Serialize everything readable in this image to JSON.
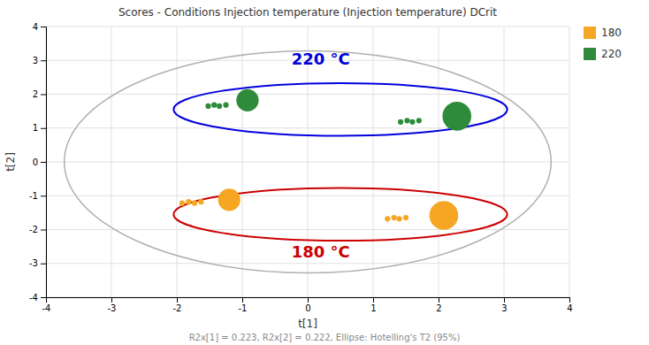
{
  "chart_data": {
    "type": "scatter",
    "title": "Scores - Conditions Injection temperature (Injection temperature) DCrit",
    "x_label": "t[1]",
    "y_label": "t[2]",
    "footnote": "R2x[1] = 0.223, R2x[2] = 0.222, Ellipse: Hotelling's T2 (95%)",
    "xlim": [
      -4,
      4
    ],
    "ylim": [
      -4,
      4
    ],
    "xticks": [
      -4,
      -3,
      -2,
      -1,
      0,
      1,
      2,
      3,
      4
    ],
    "yticks": [
      -4,
      -3,
      -2,
      -1,
      0,
      1,
      2,
      3,
      4
    ],
    "grid": true,
    "legend": "right",
    "series": [
      {
        "name": "180",
        "color": "#F5A623",
        "x": [
          -1.92,
          -1.82,
          -1.73,
          -1.63,
          -1.2,
          1.22,
          1.32,
          1.4,
          1.5,
          2.08
        ],
        "values": [
          -1.22,
          -1.18,
          -1.22,
          -1.18,
          -1.12,
          -1.68,
          -1.65,
          -1.68,
          -1.65,
          -1.58
        ],
        "sizes": [
          22,
          22,
          22,
          22,
          360,
          22,
          22,
          22,
          22,
          600
        ]
      },
      {
        "name": "220",
        "color": "#2E8B3A",
        "x": [
          -1.52,
          -1.43,
          -1.35,
          -1.25,
          -0.92,
          1.42,
          1.52,
          1.6,
          1.7,
          2.28
        ],
        "values": [
          1.65,
          1.68,
          1.65,
          1.68,
          1.82,
          1.18,
          1.22,
          1.18,
          1.22,
          1.35
        ],
        "sizes": [
          22,
          22,
          22,
          22,
          360,
          22,
          22,
          22,
          22,
          600
        ]
      }
    ],
    "ellipses": [
      {
        "cx": 0,
        "cy": 0,
        "rx": 3.72,
        "ry": 3.28,
        "color": "#b0b0b0"
      },
      {
        "cx": 0.5,
        "cy": 1.55,
        "rx": 2.55,
        "ry": 0.78,
        "color": "#0000dd"
      },
      {
        "cx": 0.5,
        "cy": -1.55,
        "rx": 2.55,
        "ry": 0.78,
        "color": "#cc0000"
      }
    ],
    "annotations": [
      {
        "text": "220 °C",
        "x": 0.2,
        "y": 3.05,
        "color": "#0000dd"
      },
      {
        "text": "180 °C",
        "x": 0.2,
        "y": -2.65,
        "color": "#cc0000"
      }
    ]
  }
}
